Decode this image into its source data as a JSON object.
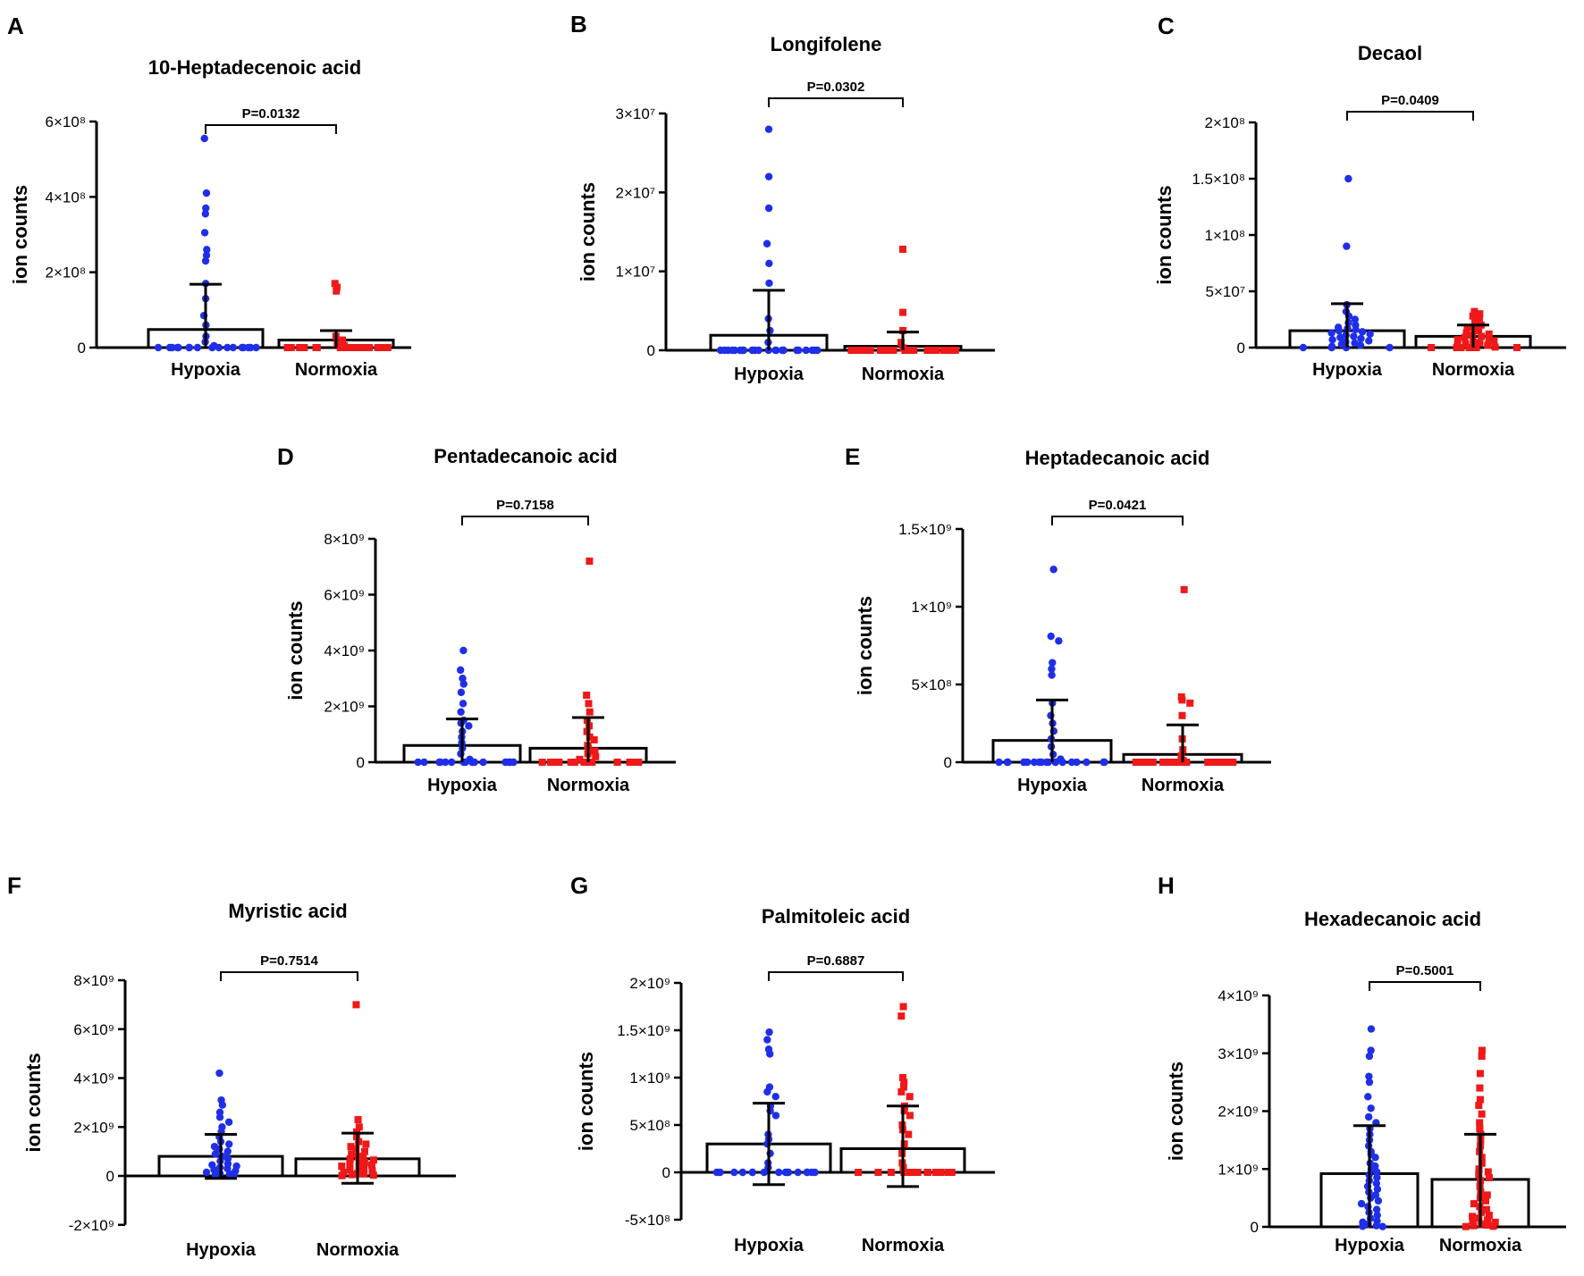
{
  "colors": {
    "hypoxia": "#1f2fe8",
    "normoxia": "#f01818",
    "axis": "#000000",
    "bar_fill": "#ffffff"
  },
  "common": {
    "ylabel": "ion counts",
    "groups": [
      "Hypoxia",
      "Normoxia"
    ]
  },
  "chart_data": [
    {
      "type": "bar",
      "letter": "A",
      "title": "10-Heptadecenoic acid",
      "pvalue": "P=0.0132",
      "ylabel": "ion counts",
      "categories": [
        "Hypoxia",
        "Normoxia"
      ],
      "ylim": [
        0,
        600000000
      ],
      "ticks": [
        {
          "v": 0,
          "label": "0"
        },
        {
          "v": 200000000,
          "label": "2×10⁸"
        },
        {
          "v": 400000000,
          "label": "4×10⁸"
        },
        {
          "v": 600000000,
          "label": "6×10⁸"
        }
      ],
      "series": [
        {
          "name": "Hypoxia",
          "mean": 48000000,
          "sd_upper": 168000000,
          "sd_lower": 0,
          "points": [
            555000000,
            410000000,
            370000000,
            355000000,
            305000000,
            260000000,
            245000000,
            230000000,
            170000000,
            130000000,
            85000000,
            60000000,
            30000000,
            15000000,
            5000000,
            0,
            0,
            0,
            0,
            0,
            0,
            0,
            0,
            0,
            0,
            0,
            0,
            0,
            0,
            0,
            0,
            0
          ]
        },
        {
          "name": "Normoxia",
          "mean": 20000000,
          "sd_upper": 45000000,
          "sd_lower": 0,
          "points": [
            170000000,
            160000000,
            150000000,
            30000000,
            20000000,
            10000000,
            5000000,
            0,
            0,
            0,
            0,
            0,
            0,
            0,
            0,
            0,
            0,
            0,
            0,
            0,
            0,
            0,
            0,
            0,
            0,
            0,
            0,
            0,
            0,
            0,
            0,
            0
          ]
        }
      ]
    },
    {
      "type": "bar",
      "letter": "B",
      "title": "Longifolene",
      "pvalue": "P=0.0302",
      "ylabel": "ion counts",
      "categories": [
        "Hypoxia",
        "Normoxia"
      ],
      "ylim": [
        0,
        30000000
      ],
      "ticks": [
        {
          "v": 0,
          "label": "0"
        },
        {
          "v": 10000000,
          "label": "1×10⁷"
        },
        {
          "v": 20000000,
          "label": "2×10⁷"
        },
        {
          "v": 30000000,
          "label": "3×10⁷"
        }
      ],
      "series": [
        {
          "name": "Hypoxia",
          "mean": 1900000,
          "sd_upper": 7600000,
          "sd_lower": 0,
          "points": [
            28000000,
            22000000,
            18000000,
            13500000,
            11000000,
            8500000,
            4000000,
            2500000,
            1000000,
            0,
            0,
            0,
            0,
            0,
            0,
            0,
            0,
            0,
            0,
            0,
            0,
            0,
            0,
            0,
            0,
            0,
            0,
            0,
            0,
            0,
            0,
            0
          ]
        },
        {
          "name": "Normoxia",
          "mean": 500000,
          "sd_upper": 2300000,
          "sd_lower": 0,
          "points": [
            12800000,
            4800000,
            2500000,
            1000000,
            300000,
            0,
            0,
            0,
            0,
            0,
            0,
            0,
            0,
            0,
            0,
            0,
            0,
            0,
            0,
            0,
            0,
            0,
            0,
            0,
            0,
            0,
            0,
            0,
            0,
            0,
            0,
            0
          ]
        }
      ]
    },
    {
      "type": "bar",
      "letter": "C",
      "title": "Decaol",
      "pvalue": "P=0.0409",
      "ylabel": "ion counts",
      "categories": [
        "Hypoxia",
        "Normoxia"
      ],
      "ylim": [
        0,
        200000000
      ],
      "ticks": [
        {
          "v": 0,
          "label": "0"
        },
        {
          "v": 50000000,
          "label": "5×10⁷"
        },
        {
          "v": 100000000,
          "label": "1×10⁸"
        },
        {
          "v": 150000000,
          "label": "1.5×10⁸"
        },
        {
          "v": 200000000,
          "label": "2×10⁸"
        }
      ],
      "series": [
        {
          "name": "Hypoxia",
          "mean": 15000000,
          "sd_upper": 39000000,
          "sd_lower": 0,
          "points": [
            150000000,
            90000000,
            38000000,
            32000000,
            28000000,
            25000000,
            22000000,
            20000000,
            18000000,
            17000000,
            16000000,
            15000000,
            14000000,
            13000000,
            12000000,
            11000000,
            10000000,
            9000000,
            8000000,
            7000000,
            6000000,
            5000000,
            4000000,
            3000000,
            2000000,
            1000000,
            0,
            0,
            0,
            0
          ]
        },
        {
          "name": "Normoxia",
          "mean": 10000000,
          "sd_upper": 20000000,
          "sd_lower": 0,
          "points": [
            32000000,
            30000000,
            28000000,
            25000000,
            22000000,
            20000000,
            18000000,
            16000000,
            15000000,
            13000000,
            12000000,
            11000000,
            10000000,
            9000000,
            8000000,
            7000000,
            6000000,
            5000000,
            4000000,
            3000000,
            2000000,
            1000000,
            500000,
            0,
            0,
            0,
            0,
            0,
            0,
            0
          ]
        }
      ]
    },
    {
      "type": "bar",
      "letter": "D",
      "title": "Pentadecanoic acid",
      "pvalue": "P=0.7158",
      "ylabel": "ion counts",
      "categories": [
        "Hypoxia",
        "Normoxia"
      ],
      "ylim": [
        0,
        8000000000
      ],
      "ticks": [
        {
          "v": 0,
          "label": "0"
        },
        {
          "v": 2000000000,
          "label": "2×10⁹"
        },
        {
          "v": 4000000000,
          "label": "4×10⁹"
        },
        {
          "v": 6000000000,
          "label": "6×10⁹"
        },
        {
          "v": 8000000000,
          "label": "8×10⁹"
        }
      ],
      "series": [
        {
          "name": "Hypoxia",
          "mean": 600000000,
          "sd_upper": 1550000000,
          "sd_lower": 0,
          "points": [
            4000000000,
            3300000000,
            3000000000,
            2800000000,
            2500000000,
            2100000000,
            1800000000,
            1500000000,
            1400000000,
            1300000000,
            1100000000,
            900000000,
            700000000,
            500000000,
            300000000,
            100000000,
            0,
            0,
            0,
            0,
            0,
            0,
            0,
            0,
            0,
            0,
            0,
            0,
            0,
            0,
            0,
            0
          ]
        },
        {
          "name": "Normoxia",
          "mean": 500000000,
          "sd_upper": 1600000000,
          "sd_lower": 0,
          "points": [
            7200000000,
            2400000000,
            2100000000,
            1800000000,
            1500000000,
            1300000000,
            1100000000,
            900000000,
            800000000,
            600000000,
            500000000,
            400000000,
            300000000,
            200000000,
            100000000,
            0,
            0,
            0,
            0,
            0,
            0,
            0,
            0,
            0,
            0,
            0,
            0,
            0,
            0,
            0,
            0,
            0
          ]
        }
      ]
    },
    {
      "type": "bar",
      "letter": "E",
      "title": "Heptadecanoic acid",
      "pvalue": "P=0.0421",
      "ylabel": "ion counts",
      "categories": [
        "Hypoxia",
        "Normoxia"
      ],
      "ylim": [
        0,
        1500000000
      ],
      "ticks": [
        {
          "v": 0,
          "label": "0"
        },
        {
          "v": 500000000,
          "label": "5×10⁸"
        },
        {
          "v": 1000000000,
          "label": "1×10⁹"
        },
        {
          "v": 1500000000,
          "label": "1.5×10⁹"
        }
      ],
      "series": [
        {
          "name": "Hypoxia",
          "mean": 140000000,
          "sd_upper": 400000000,
          "sd_lower": 0,
          "points": [
            1240000000,
            810000000,
            780000000,
            640000000,
            600000000,
            560000000,
            380000000,
            300000000,
            250000000,
            200000000,
            150000000,
            100000000,
            50000000,
            20000000,
            0,
            0,
            0,
            0,
            0,
            0,
            0,
            0,
            0,
            0,
            0,
            0,
            0,
            0,
            0,
            0,
            0,
            0
          ]
        },
        {
          "name": "Normoxia",
          "mean": 50000000,
          "sd_upper": 240000000,
          "sd_lower": 0,
          "points": [
            1110000000,
            420000000,
            400000000,
            380000000,
            300000000,
            150000000,
            80000000,
            40000000,
            10000000,
            0,
            0,
            0,
            0,
            0,
            0,
            0,
            0,
            0,
            0,
            0,
            0,
            0,
            0,
            0,
            0,
            0,
            0,
            0,
            0,
            0,
            0,
            0
          ]
        }
      ]
    },
    {
      "type": "bar",
      "letter": "F",
      "title": "Myristic acid",
      "pvalue": "P=0.7514",
      "ylabel": "ion counts",
      "categories": [
        "Hypoxia",
        "Normoxia"
      ],
      "ylim": [
        -2000000000,
        8000000000
      ],
      "ticks": [
        {
          "v": -2000000000,
          "label": "-2×10⁹"
        },
        {
          "v": 0,
          "label": "0"
        },
        {
          "v": 2000000000,
          "label": "2×10⁹"
        },
        {
          "v": 4000000000,
          "label": "4×10⁹"
        },
        {
          "v": 6000000000,
          "label": "6×10⁹"
        },
        {
          "v": 8000000000,
          "label": "8×10⁹"
        }
      ],
      "series": [
        {
          "name": "Hypoxia",
          "mean": 800000000,
          "sd_upper": 1700000000,
          "sd_lower": -100000000,
          "points": [
            4200000000,
            3100000000,
            2900000000,
            2600000000,
            2400000000,
            2200000000,
            2000000000,
            1800000000,
            1600000000,
            1400000000,
            1300000000,
            1200000000,
            1100000000,
            1000000000,
            900000000,
            800000000,
            700000000,
            600000000,
            500000000,
            450000000,
            400000000,
            350000000,
            300000000,
            250000000,
            200000000,
            150000000,
            100000000,
            80000000,
            50000000,
            30000000
          ]
        },
        {
          "name": "Normoxia",
          "mean": 700000000,
          "sd_upper": 1750000000,
          "sd_lower": -300000000,
          "points": [
            7000000000,
            2300000000,
            2000000000,
            1800000000,
            1600000000,
            1400000000,
            1300000000,
            1200000000,
            1100000000,
            1000000000,
            900000000,
            800000000,
            750000000,
            700000000,
            650000000,
            600000000,
            550000000,
            500000000,
            450000000,
            400000000,
            350000000,
            300000000,
            250000000,
            200000000,
            150000000,
            100000000,
            80000000,
            50000000,
            30000000,
            10000000
          ]
        }
      ]
    },
    {
      "type": "bar",
      "letter": "G",
      "title": "Palmitoleic acid",
      "pvalue": "P=0.6887",
      "ylabel": "ion counts",
      "categories": [
        "Hypoxia",
        "Normoxia"
      ],
      "ylim": [
        -500000000,
        2000000000
      ],
      "ticks": [
        {
          "v": -500000000,
          "label": "-5×10⁸"
        },
        {
          "v": 0,
          "label": "0"
        },
        {
          "v": 500000000,
          "label": "5×10⁸"
        },
        {
          "v": 1000000000,
          "label": "1×10⁹"
        },
        {
          "v": 1500000000,
          "label": "1.5×10⁹"
        },
        {
          "v": 2000000000,
          "label": "2×10⁹"
        }
      ],
      "series": [
        {
          "name": "Hypoxia",
          "mean": 300000000,
          "sd_upper": 730000000,
          "sd_lower": -130000000,
          "points": [
            1480000000,
            1400000000,
            1300000000,
            1250000000,
            900000000,
            850000000,
            800000000,
            700000000,
            650000000,
            600000000,
            400000000,
            350000000,
            300000000,
            200000000,
            100000000,
            50000000,
            0,
            0,
            0,
            0,
            0,
            0,
            0,
            0,
            0,
            0,
            0,
            0,
            0,
            0,
            0,
            0
          ]
        },
        {
          "name": "Normoxia",
          "mean": 250000000,
          "sd_upper": 700000000,
          "sd_lower": -150000000,
          "points": [
            1750000000,
            1650000000,
            1000000000,
            950000000,
            900000000,
            850000000,
            800000000,
            700000000,
            650000000,
            600000000,
            500000000,
            450000000,
            400000000,
            300000000,
            200000000,
            100000000,
            50000000,
            0,
            0,
            0,
            0,
            0,
            0,
            0,
            0,
            0,
            0,
            0,
            0,
            0,
            0,
            0
          ]
        }
      ]
    },
    {
      "type": "bar",
      "letter": "H",
      "title": "Hexadecanoic acid",
      "pvalue": "P=0.5001",
      "ylabel": "ion counts",
      "categories": [
        "Hypoxia",
        "Normoxia"
      ],
      "ylim": [
        0,
        4000000000
      ],
      "ticks": [
        {
          "v": 0,
          "label": "0"
        },
        {
          "v": 1000000000,
          "label": "1×10⁹"
        },
        {
          "v": 2000000000,
          "label": "2×10⁹"
        },
        {
          "v": 3000000000,
          "label": "3×10⁹"
        },
        {
          "v": 4000000000,
          "label": "4×10⁹"
        }
      ],
      "series": [
        {
          "name": "Hypoxia",
          "mean": 920000000,
          "sd_upper": 1750000000,
          "sd_lower": 0,
          "points": [
            3420000000,
            3050000000,
            2950000000,
            2600000000,
            2500000000,
            2250000000,
            2050000000,
            1900000000,
            1800000000,
            1700000000,
            1600000000,
            1500000000,
            1400000000,
            1300000000,
            1250000000,
            1200000000,
            1100000000,
            1050000000,
            1000000000,
            950000000,
            900000000,
            850000000,
            800000000,
            750000000,
            700000000,
            650000000,
            600000000,
            550000000,
            500000000,
            450000000,
            400000000,
            350000000,
            300000000,
            250000000,
            200000000,
            150000000,
            100000000,
            80000000,
            50000000,
            20000000,
            10000000,
            5000000
          ]
        },
        {
          "name": "Normoxia",
          "mean": 820000000,
          "sd_upper": 1600000000,
          "sd_lower": 0,
          "points": [
            3050000000,
            2950000000,
            2650000000,
            2400000000,
            2200000000,
            2100000000,
            1950000000,
            1800000000,
            1700000000,
            1600000000,
            1500000000,
            1400000000,
            1300000000,
            1200000000,
            1100000000,
            1000000000,
            950000000,
            900000000,
            850000000,
            800000000,
            700000000,
            600000000,
            550000000,
            500000000,
            450000000,
            400000000,
            350000000,
            300000000,
            250000000,
            200000000,
            180000000,
            150000000,
            120000000,
            100000000,
            80000000,
            50000000,
            30000000,
            20000000,
            10000000,
            5000000
          ]
        }
      ]
    }
  ]
}
